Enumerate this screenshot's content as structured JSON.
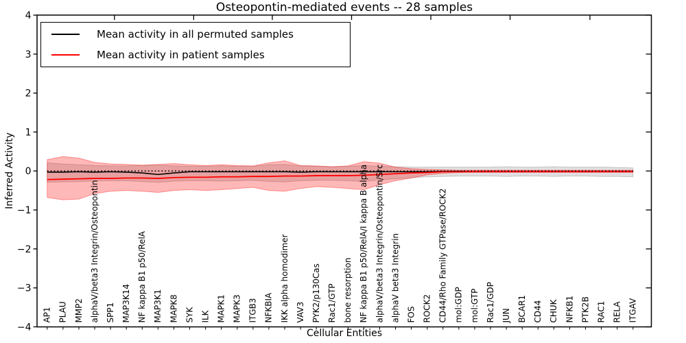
{
  "header": {
    "title": "Osteopontin-mediated events -- 28 samples"
  },
  "legend": {
    "items": [
      {
        "label": "Mean activity in all permuted samples",
        "color": "#000000"
      },
      {
        "label": "Mean activity in patient samples",
        "color": "#ff0000"
      }
    ]
  },
  "axes": {
    "ylabel": "Inferred Activity",
    "xlabel": "Cellular Entities",
    "ytick_values": [
      4,
      3,
      2,
      1,
      0,
      -1,
      -2,
      -3,
      -4
    ],
    "ytick_labels": [
      "4",
      "3",
      "2",
      "1",
      "0",
      "−1",
      "−2",
      "−3",
      "−4"
    ]
  },
  "chart_data": {
    "type": "line",
    "title": "Osteopontin-mediated events -- 28 samples",
    "xlabel": "Cellular Entities",
    "ylabel": "Inferred Activity",
    "ylim": [
      -4,
      4
    ],
    "grid": false,
    "legend_position": "upper left",
    "zero_line": {
      "y": 0,
      "style": "dotted",
      "color": "#000000"
    },
    "categories": [
      "AP1",
      "PLAU",
      "MMP2",
      "alphaV/beta3 Integrin/Osteopontin",
      "SPP1",
      "MAP3K14",
      "NF kappa B1 p50/RelA",
      "MAP3K1",
      "MAPK8",
      "SYK",
      "ILK",
      "MAPK1",
      "MAPK3",
      "ITGB3",
      "NFKBIA",
      "IKK alpha homodimer",
      "VAV3",
      "PYK2/p130Cas",
      "Rac1/GTP",
      "bone resorption",
      "NF kappa B1 p50/RelA/I kappa B alpha",
      "alphaV/beta3 Integrin/Osteopontin/Src",
      "alphaV beta3 Integrin",
      "FOS",
      "ROCK2",
      "CD44/Rho Family GTPase/ROCK2",
      "mol:GDP",
      "mol:GTP",
      "Rac1/GDP",
      "JUN",
      "BCAR1",
      "CD44",
      "CHUK",
      "NFKB1",
      "PTK2B",
      "RAC1",
      "RELA",
      "ITGAV"
    ],
    "series": [
      {
        "name": "Mean activity in all permuted samples",
        "color": "#000000",
        "line_width": 1.6,
        "band_fill": "rgba(0,0,0,0.12)",
        "band_edge": "rgba(0,0,0,0.18)",
        "values": [
          -0.03,
          -0.03,
          -0.02,
          -0.03,
          -0.02,
          -0.03,
          -0.05,
          -0.09,
          -0.05,
          -0.02,
          -0.02,
          -0.02,
          -0.02,
          -0.02,
          -0.02,
          -0.02,
          -0.03,
          -0.02,
          -0.02,
          -0.02,
          -0.02,
          -0.02,
          -0.02,
          -0.02,
          -0.02,
          -0.01,
          -0.01,
          -0.01,
          -0.01,
          -0.01,
          -0.01,
          -0.01,
          -0.01,
          -0.01,
          -0.01,
          -0.01,
          -0.01,
          -0.01
        ],
        "band_upper": [
          0.21,
          0.18,
          0.16,
          0.14,
          0.13,
          0.13,
          0.14,
          0.15,
          0.13,
          0.12,
          0.12,
          0.13,
          0.12,
          0.12,
          0.16,
          0.17,
          0.13,
          0.12,
          0.11,
          0.12,
          0.14,
          0.12,
          0.11,
          0.1,
          0.1,
          0.1,
          0.1,
          0.1,
          0.1,
          0.11,
          0.1,
          0.1,
          0.11,
          0.1,
          0.1,
          0.1,
          0.09,
          0.08
        ],
        "band_lower": [
          -0.29,
          -0.28,
          -0.27,
          -0.26,
          -0.25,
          -0.25,
          -0.27,
          -0.29,
          -0.26,
          -0.25,
          -0.25,
          -0.26,
          -0.25,
          -0.24,
          -0.27,
          -0.28,
          -0.25,
          -0.24,
          -0.24,
          -0.25,
          -0.27,
          -0.23,
          -0.2,
          -0.17,
          -0.15,
          -0.14,
          -0.13,
          -0.13,
          -0.13,
          -0.14,
          -0.13,
          -0.13,
          -0.14,
          -0.13,
          -0.13,
          -0.14,
          -0.14,
          -0.15
        ]
      },
      {
        "name": "Mean activity in patient samples",
        "color": "#ff0000",
        "line_width": 1.8,
        "band_fill": "rgba(255,0,0,0.28)",
        "band_edge": "rgba(255,0,0,0.38)",
        "values": [
          -0.22,
          -0.21,
          -0.2,
          -0.19,
          -0.19,
          -0.18,
          -0.18,
          -0.19,
          -0.17,
          -0.16,
          -0.16,
          -0.15,
          -0.15,
          -0.14,
          -0.14,
          -0.13,
          -0.13,
          -0.12,
          -0.12,
          -0.12,
          -0.11,
          -0.09,
          -0.07,
          -0.05,
          -0.04,
          -0.02,
          -0.02,
          -0.01,
          -0.01,
          -0.01,
          -0.01,
          -0.01,
          -0.01,
          -0.01,
          -0.01,
          -0.01,
          -0.01,
          -0.01
        ],
        "band_upper": [
          0.29,
          0.37,
          0.33,
          0.22,
          0.18,
          0.17,
          0.15,
          0.17,
          0.19,
          0.16,
          0.14,
          0.16,
          0.14,
          0.13,
          0.21,
          0.26,
          0.14,
          0.13,
          0.11,
          0.13,
          0.24,
          0.2,
          0.1,
          0.06,
          0.04,
          0.03,
          0.02,
          0.02,
          0.02,
          0.02,
          0.02,
          0.02,
          0.02,
          0.02,
          0.02,
          0.02,
          0.02,
          0.02
        ],
        "band_lower": [
          -0.68,
          -0.74,
          -0.72,
          -0.58,
          -0.52,
          -0.5,
          -0.52,
          -0.55,
          -0.5,
          -0.48,
          -0.5,
          -0.48,
          -0.45,
          -0.42,
          -0.5,
          -0.52,
          -0.45,
          -0.4,
          -0.42,
          -0.45,
          -0.48,
          -0.35,
          -0.25,
          -0.18,
          -0.1,
          -0.06,
          -0.04,
          -0.04,
          -0.04,
          -0.04,
          -0.04,
          -0.04,
          -0.04,
          -0.04,
          -0.04,
          -0.04,
          -0.04,
          -0.04
        ]
      }
    ]
  }
}
